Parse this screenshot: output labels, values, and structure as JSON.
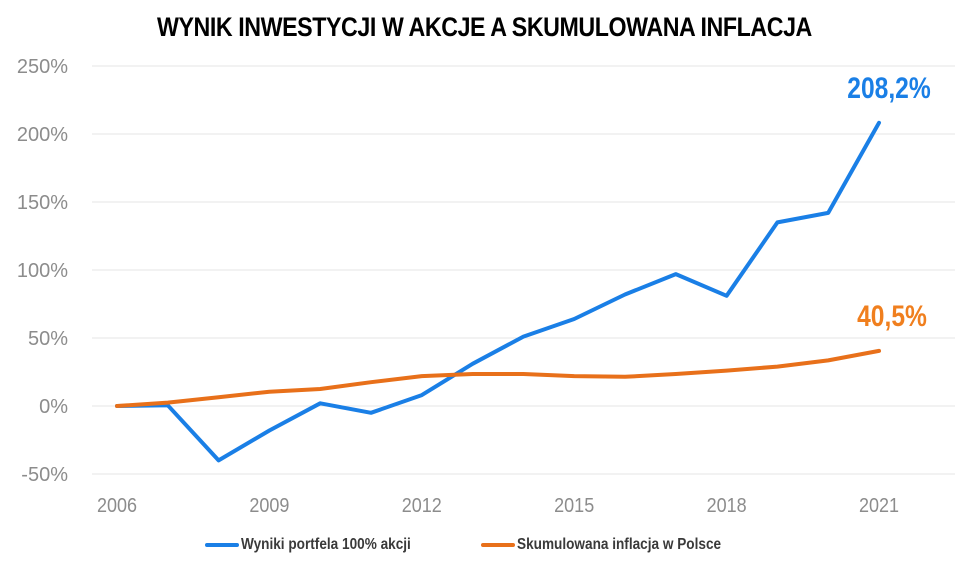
{
  "title": "WYNIK INWESTYCJI W AKCJE A SKUMULOWANA INFLACJA",
  "annotations": {
    "stocks_end": "208,2%",
    "inflation_end": "40,5%"
  },
  "legend": {
    "stocks": "Wyniki portfela 100% akcji",
    "inflation": "Skumulowana inflacja w Polsce"
  },
  "colors": {
    "stocks": "#1a7fe6",
    "inflation": "#e8701a",
    "stocks_label": "#1a7fe6",
    "inflation_label": "#f07f1e",
    "grid": "#e6e6e6",
    "tick": "#8c8c8c"
  },
  "chart_data": {
    "type": "line",
    "title": "WYNIK INWESTYCJI W AKCJE A SKUMULOWANA INFLACJA",
    "xlabel": "",
    "ylabel": "",
    "x": [
      2006,
      2007,
      2008,
      2009,
      2010,
      2011,
      2012,
      2013,
      2014,
      2015,
      2016,
      2017,
      2018,
      2019,
      2020,
      2021
    ],
    "x_tick_labels": [
      "2006",
      "2009",
      "2012",
      "2015",
      "2018",
      "2021"
    ],
    "y_tick_labels": [
      "250%",
      "200%",
      "150%",
      "100%",
      "50%",
      "0%",
      "-50%"
    ],
    "ylim": [
      -50,
      250
    ],
    "grid": true,
    "legend_position": "bottom",
    "series": [
      {
        "name": "Wyniki portfela 100% akcji",
        "color": "#1a7fe6",
        "values": [
          0,
          0.5,
          -40,
          -18,
          2,
          -5,
          8,
          31,
          51,
          64,
          82,
          97,
          81,
          135,
          142,
          208.2
        ]
      },
      {
        "name": "Skumulowana inflacja w Polsce",
        "color": "#e8701a",
        "values": [
          0,
          2.5,
          6.5,
          10.5,
          12.5,
          17.5,
          22,
          23.5,
          23.5,
          22,
          21.5,
          23.5,
          26,
          29,
          33.5,
          40.5
        ]
      }
    ],
    "annotations": [
      {
        "text": "208,2%",
        "x": 2021,
        "y": 208.2,
        "color": "#1a7fe6"
      },
      {
        "text": "40,5%",
        "x": 2021,
        "y": 40.5,
        "color": "#f07f1e"
      }
    ]
  }
}
